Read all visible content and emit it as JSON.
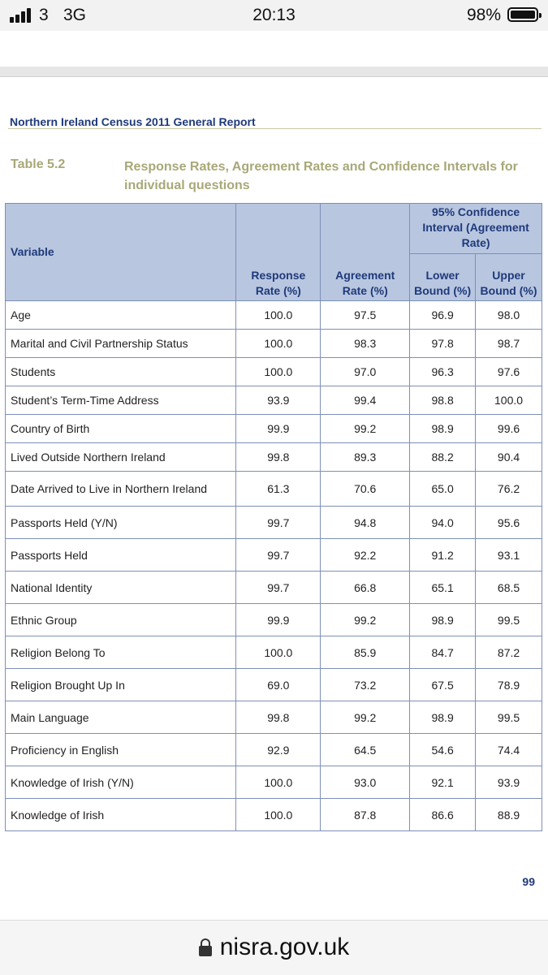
{
  "status_bar": {
    "carrier": "3",
    "network": "3G",
    "time": "20:13",
    "battery_percent": "98%",
    "signal_bars": 4,
    "battery_level": 0.98
  },
  "document": {
    "header": "Northern Ireland Census 2011 General Report",
    "table_number": "Table 5.2",
    "table_title": "Response Rates, Agreement Rates and Confidence Intervals for individual questions",
    "page_number": "99",
    "colors": {
      "header_text": "#1f3a7a",
      "title_text": "#a8a878",
      "table_header_bg": "#b8c6e0",
      "table_border": "#7d8fb8"
    }
  },
  "table": {
    "headers": {
      "variable": "Variable",
      "response_rate": "Response Rate (%)",
      "agreement_rate": "Agreement Rate (%)",
      "ci_group": "95% Confidence Interval (Agreement Rate)",
      "lower": "Lower Bound (%)",
      "upper": "Upper Bound (%)"
    },
    "rows": [
      {
        "variable": "Age",
        "response": "100.0",
        "agreement": "97.5",
        "lower": "96.9",
        "upper": "98.0"
      },
      {
        "variable": "Marital and Civil Partnership Status",
        "response": "100.0",
        "agreement": "98.3",
        "lower": "97.8",
        "upper": "98.7"
      },
      {
        "variable": "Students",
        "response": "100.0",
        "agreement": "97.0",
        "lower": "96.3",
        "upper": "97.6"
      },
      {
        "variable": "Student’s Term-Time Address",
        "response": "93.9",
        "agreement": "99.4",
        "lower": "98.8",
        "upper": "100.0"
      },
      {
        "variable": "Country of Birth",
        "response": "99.9",
        "agreement": "99.2",
        "lower": "98.9",
        "upper": "99.6"
      },
      {
        "variable": "Lived Outside Northern Ireland",
        "response": "99.8",
        "agreement": "89.3",
        "lower": "88.2",
        "upper": "90.4"
      },
      {
        "variable": "Date Arrived to Live in Northern Ireland",
        "response": "61.3",
        "agreement": "70.6",
        "lower": "65.0",
        "upper": "76.2"
      },
      {
        "variable": "Passports Held (Y/N)",
        "response": "99.7",
        "agreement": "94.8",
        "lower": "94.0",
        "upper": "95.6"
      },
      {
        "variable": "Passports Held",
        "response": "99.7",
        "agreement": "92.2",
        "lower": "91.2",
        "upper": "93.1"
      },
      {
        "variable": "National Identity",
        "response": "99.7",
        "agreement": "66.8",
        "lower": "65.1",
        "upper": "68.5"
      },
      {
        "variable": "Ethnic Group",
        "response": "99.9",
        "agreement": "99.2",
        "lower": "98.9",
        "upper": "99.5"
      },
      {
        "variable": "Religion Belong To",
        "response": "100.0",
        "agreement": "85.9",
        "lower": "84.7",
        "upper": "87.2"
      },
      {
        "variable": "Religion Brought Up In",
        "response": "69.0",
        "agreement": "73.2",
        "lower": "67.5",
        "upper": "78.9"
      },
      {
        "variable": "Main Language",
        "response": "99.8",
        "agreement": "99.2",
        "lower": "98.9",
        "upper": "99.5"
      },
      {
        "variable": "Proficiency in English",
        "response": "92.9",
        "agreement": "64.5",
        "lower": "54.6",
        "upper": "74.4"
      },
      {
        "variable": "Knowledge of Irish (Y/N)",
        "response": "100.0",
        "agreement": "93.0",
        "lower": "92.1",
        "upper": "93.9"
      },
      {
        "variable": "Knowledge of Irish",
        "response": "100.0",
        "agreement": "87.8",
        "lower": "86.6",
        "upper": "88.9"
      }
    ]
  },
  "browser": {
    "url": "nisra.gov.uk",
    "lock_icon": "lock-icon"
  }
}
